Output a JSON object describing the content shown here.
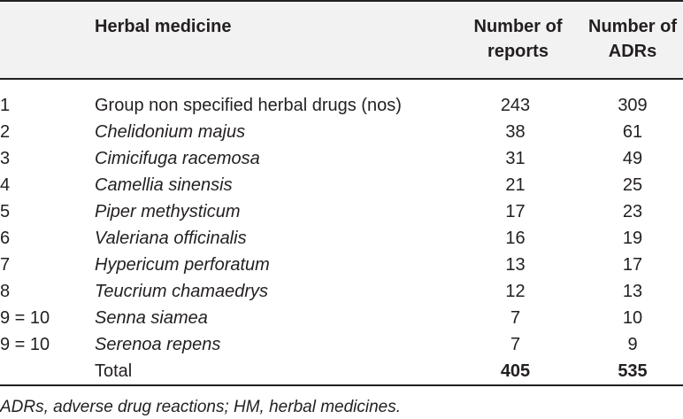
{
  "table": {
    "headers": {
      "rank": "",
      "name": "Herbal medicine",
      "reports": [
        "Number of",
        "reports"
      ],
      "adrs": [
        "Number of",
        "ADRs"
      ]
    },
    "rows": [
      {
        "rank": "1",
        "name": "Group non specified herbal drugs (nos)",
        "italic": false,
        "reports": "243",
        "adrs": "309"
      },
      {
        "rank": "2",
        "name": "Chelidonium majus",
        "italic": true,
        "reports": "38",
        "adrs": "61"
      },
      {
        "rank": "3",
        "name": "Cimicifuga racemosa",
        "italic": true,
        "reports": "31",
        "adrs": "49"
      },
      {
        "rank": "4",
        "name": "Camellia sinensis",
        "italic": true,
        "reports": "21",
        "adrs": "25"
      },
      {
        "rank": "5",
        "name": "Piper methysticum",
        "italic": true,
        "reports": "17",
        "adrs": "23"
      },
      {
        "rank": "6",
        "name": "Valeriana officinalis",
        "italic": true,
        "reports": "16",
        "adrs": "19"
      },
      {
        "rank": "7",
        "name": "Hypericum perforatum",
        "italic": true,
        "reports": "13",
        "adrs": "17"
      },
      {
        "rank": "8",
        "name": "Teucrium chamaedrys",
        "italic": true,
        "reports": "12",
        "adrs": "13"
      },
      {
        "rank": "9 = 10",
        "name": "Senna siamea",
        "italic": true,
        "reports": "7",
        "adrs": "10"
      },
      {
        "rank": "9 = 10",
        "name": "Serenoa repens",
        "italic": true,
        "reports": "7",
        "adrs": "9"
      }
    ],
    "total": {
      "label": "Total",
      "reports": "405",
      "adrs": "535"
    }
  },
  "footnote": "ADRs, adverse drug reactions; HM, herbal medicines.",
  "colors": {
    "header_background": "#f2f2f2",
    "text": "#231f20",
    "rule": "#231f20"
  }
}
